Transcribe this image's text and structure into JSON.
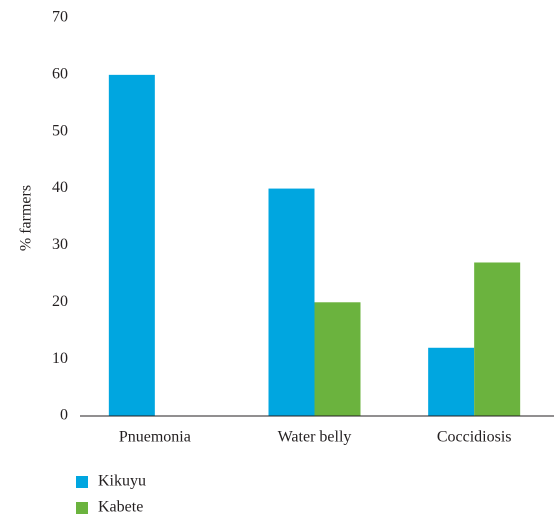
{
  "chart_data": {
    "type": "bar",
    "y_label": "% farmers",
    "categories": [
      "Pnuemonia",
      "Water belly",
      "Coccidiosis"
    ],
    "series": [
      {
        "name": "Kikuyu",
        "color": "#00a6e0",
        "values": [
          60,
          40,
          12
        ]
      },
      {
        "name": "Kabete",
        "color": "#6bb33e",
        "values": [
          0,
          20,
          27
        ]
      }
    ],
    "ylim": [
      0,
      70
    ],
    "yticks": [
      0,
      10,
      20,
      30,
      40,
      50,
      60,
      70
    ],
    "grid": false,
    "legend": "bottom-left"
  }
}
